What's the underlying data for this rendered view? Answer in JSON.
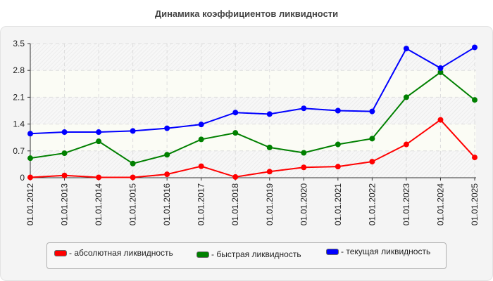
{
  "title": "Динамика коэффициентов ликвидности",
  "chart_data": {
    "type": "line",
    "title": "Динамика коэффициентов ликвидности",
    "xlabel": "",
    "ylabel": "",
    "ylim": [
      0,
      3.5
    ],
    "yticks": [
      "0",
      "0.7",
      "1.4",
      "2.1",
      "2.8",
      "3.5"
    ],
    "grid": true,
    "legend_position": "bottom",
    "categories": [
      "01.01.2012",
      "01.01.2013",
      "01.01.2014",
      "01.01.2015",
      "01.01.2016",
      "01.01.2017",
      "01.01.2018",
      "01.01.2019",
      "01.01.2020",
      "01.01.2021",
      "01.01.2022",
      "01.01.2023",
      "01.01.2024",
      "01.01.2025"
    ],
    "series": [
      {
        "name": "- абсолютная ликвидность",
        "color": "#ff0000",
        "values": [
          0.01,
          0.06,
          0.01,
          0.01,
          0.09,
          0.3,
          0.02,
          0.16,
          0.27,
          0.29,
          0.42,
          0.87,
          1.51,
          0.53
        ]
      },
      {
        "name": "- быстрая ликвидность",
        "color": "#008000",
        "values": [
          0.51,
          0.64,
          0.95,
          0.37,
          0.6,
          1.0,
          1.17,
          0.79,
          0.65,
          0.87,
          1.02,
          2.1,
          2.75,
          2.03
        ]
      },
      {
        "name": "- текущая ликвидность",
        "color": "#0000ff",
        "values": [
          1.15,
          1.19,
          1.19,
          1.22,
          1.29,
          1.39,
          1.7,
          1.66,
          1.81,
          1.75,
          1.73,
          3.37,
          2.86,
          3.4
        ]
      }
    ]
  },
  "legend": {
    "items": [
      {
        "label": "- абсолютная ликвидность",
        "color": "#ff0000"
      },
      {
        "label": "- быстрая ликвидность",
        "color": "#008000"
      },
      {
        "label": "- текущая ликвидность",
        "color": "#0000ff"
      }
    ]
  }
}
